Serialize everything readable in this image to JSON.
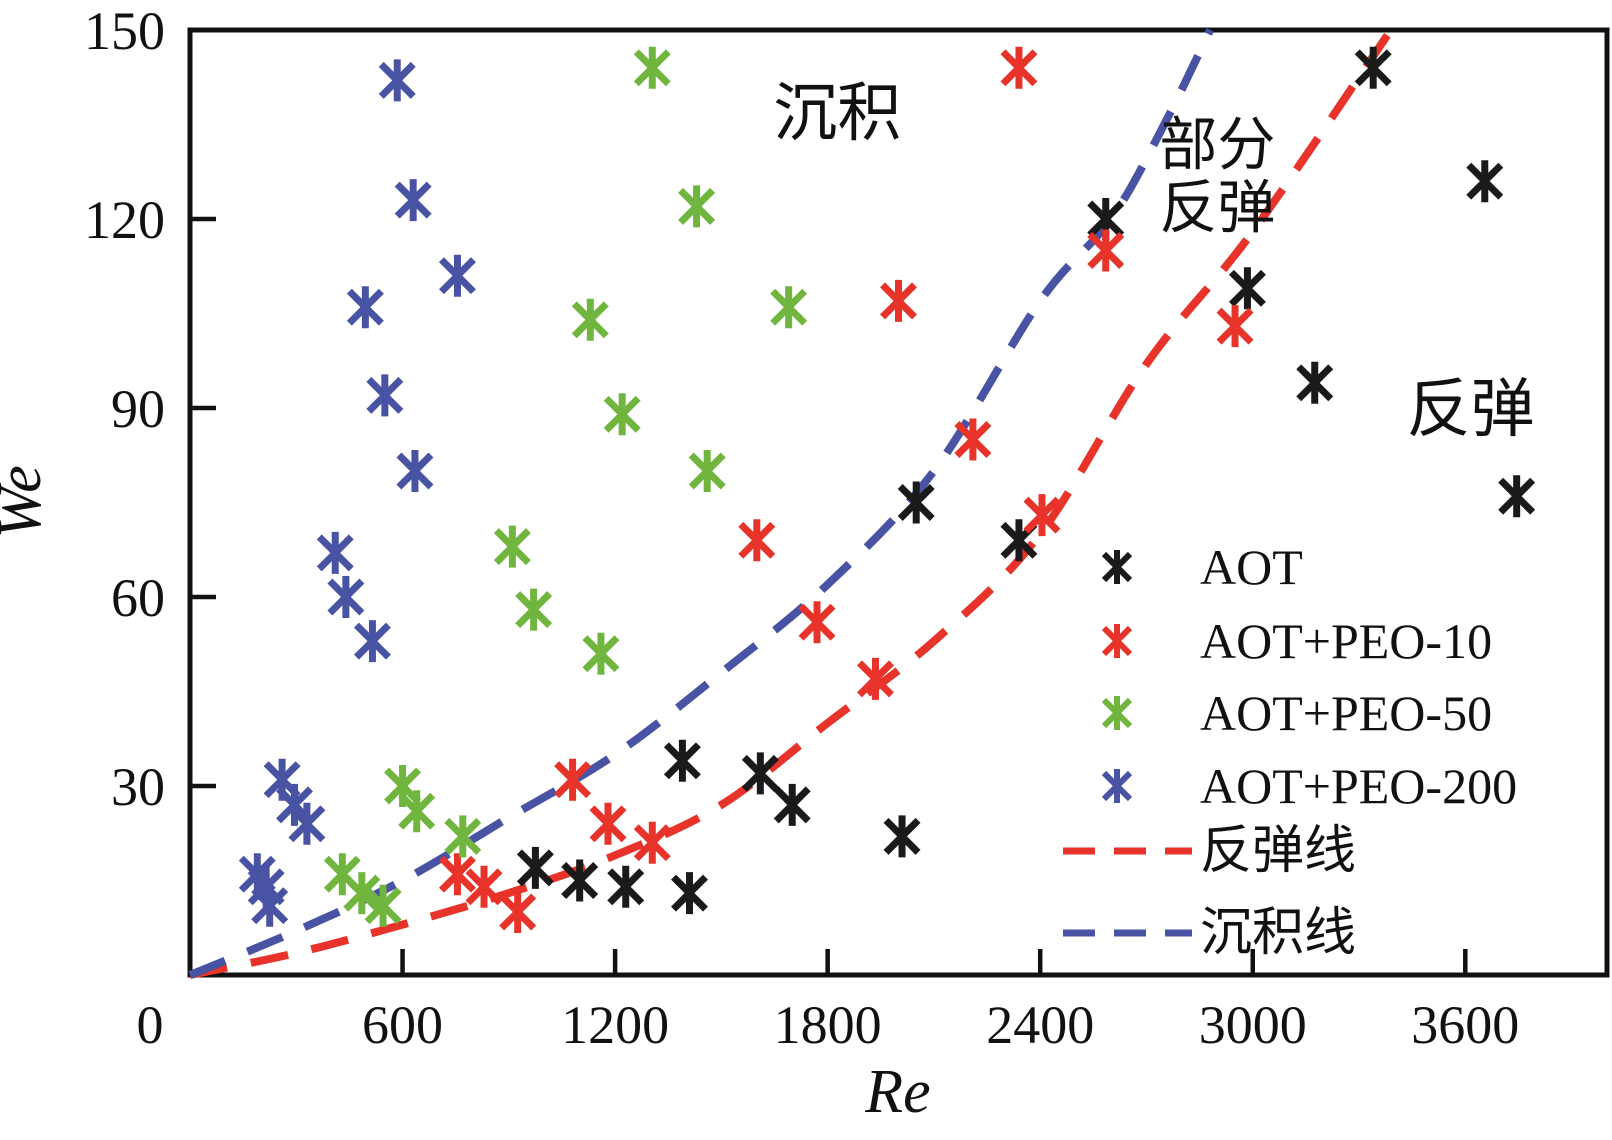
{
  "chart_data": {
    "type": "scatter",
    "title": "",
    "xlabel": "Re",
    "ylabel": "We",
    "xlim": [
      0,
      4000
    ],
    "ylim": [
      0,
      150
    ],
    "x_ticks": [
      600,
      1200,
      1800,
      2400,
      3000,
      3600
    ],
    "x_origin_label": "0",
    "y_ticks": [
      30,
      60,
      90,
      120,
      150
    ],
    "grid": false,
    "axis_color": "#111111",
    "legend_position": "right-middle",
    "series": [
      {
        "name": "AOT",
        "color": "#1a1a1a",
        "marker": "six-arm-asterisk",
        "points": [
          [
            3340,
            144
          ],
          [
            3655,
            126
          ],
          [
            2585,
            120
          ],
          [
            2985,
            109
          ],
          [
            3175,
            94
          ],
          [
            3745,
            76
          ],
          [
            2050,
            75
          ],
          [
            2340,
            69
          ],
          [
            1390,
            34
          ],
          [
            1610,
            32
          ],
          [
            1700,
            27
          ],
          [
            2010,
            22
          ],
          [
            975,
            17
          ],
          [
            1100,
            15
          ],
          [
            1230,
            14
          ],
          [
            1410,
            13
          ]
        ]
      },
      {
        "name": "AOT+PEO-10",
        "color": "#e7332a",
        "marker": "six-arm-asterisk",
        "points": [
          [
            2340,
            144
          ],
          [
            2585,
            115
          ],
          [
            2000,
            107
          ],
          [
            2950,
            103
          ],
          [
            2210,
            85
          ],
          [
            2405,
            73
          ],
          [
            1600,
            69
          ],
          [
            1770,
            56
          ],
          [
            1935,
            47
          ],
          [
            1080,
            31
          ],
          [
            1180,
            24
          ],
          [
            1305,
            21
          ],
          [
            755,
            16
          ],
          [
            830,
            14
          ],
          [
            925,
            10
          ]
        ]
      },
      {
        "name": "AOT+PEO-50",
        "color": "#70b63e",
        "marker": "six-arm-asterisk",
        "points": [
          [
            1305,
            144
          ],
          [
            1430,
            122
          ],
          [
            1690,
            106
          ],
          [
            1130,
            104
          ],
          [
            1220,
            89
          ],
          [
            1460,
            80
          ],
          [
            910,
            68
          ],
          [
            970,
            58
          ],
          [
            1160,
            51
          ],
          [
            600,
            30
          ],
          [
            640,
            26
          ],
          [
            770,
            22
          ],
          [
            430,
            16
          ],
          [
            485,
            13
          ],
          [
            545,
            11
          ]
        ]
      },
      {
        "name": "AOT+PEO-200",
        "color": "#4853a4",
        "marker": "six-arm-asterisk",
        "points": [
          [
            585,
            142
          ],
          [
            630,
            123
          ],
          [
            755,
            111
          ],
          [
            495,
            106
          ],
          [
            550,
            92
          ],
          [
            635,
            80
          ],
          [
            410,
            67
          ],
          [
            440,
            60
          ],
          [
            515,
            53
          ],
          [
            260,
            31
          ],
          [
            295,
            27
          ],
          [
            330,
            24
          ],
          [
            190,
            16
          ],
          [
            215,
            14
          ],
          [
            225,
            11
          ]
        ]
      }
    ],
    "lines": [
      {
        "name": "反弹线",
        "color": "#e7332a",
        "style": "dashed",
        "points": [
          [
            0,
            0
          ],
          [
            300,
            3.5
          ],
          [
            600,
            8
          ],
          [
            900,
            13
          ],
          [
            1200,
            19
          ],
          [
            1500,
            27
          ],
          [
            1800,
            40
          ],
          [
            2100,
            53
          ],
          [
            2400,
            70
          ],
          [
            2700,
            97
          ],
          [
            3000,
            118
          ],
          [
            3390,
            150
          ]
        ]
      },
      {
        "name": "沉积线",
        "color": "#4853a4",
        "style": "dashed",
        "points": [
          [
            0,
            0
          ],
          [
            300,
            7
          ],
          [
            600,
            15
          ],
          [
            900,
            25
          ],
          [
            1200,
            35
          ],
          [
            1500,
            48
          ],
          [
            1800,
            62
          ],
          [
            2100,
            80
          ],
          [
            2400,
            107
          ],
          [
            2600,
            120
          ],
          [
            2750,
            135
          ],
          [
            2880,
            150
          ]
        ]
      }
    ],
    "annotations": [
      {
        "text": "沉积",
        "re": 1827,
        "we": 137,
        "size": 64
      },
      {
        "text": "部分",
        "re": 2900,
        "we": 132,
        "size": 58
      },
      {
        "text": "反弹",
        "re": 2900,
        "we": 122,
        "size": 58
      },
      {
        "text": "反弹",
        "re": 3615,
        "we": 90,
        "size": 64
      }
    ],
    "legend": {
      "marker_entries": [
        "AOT",
        "AOT+PEO-10",
        "AOT+PEO-50",
        "AOT+PEO-200"
      ],
      "line_entries": [
        "反弹线",
        "沉积线"
      ]
    }
  }
}
